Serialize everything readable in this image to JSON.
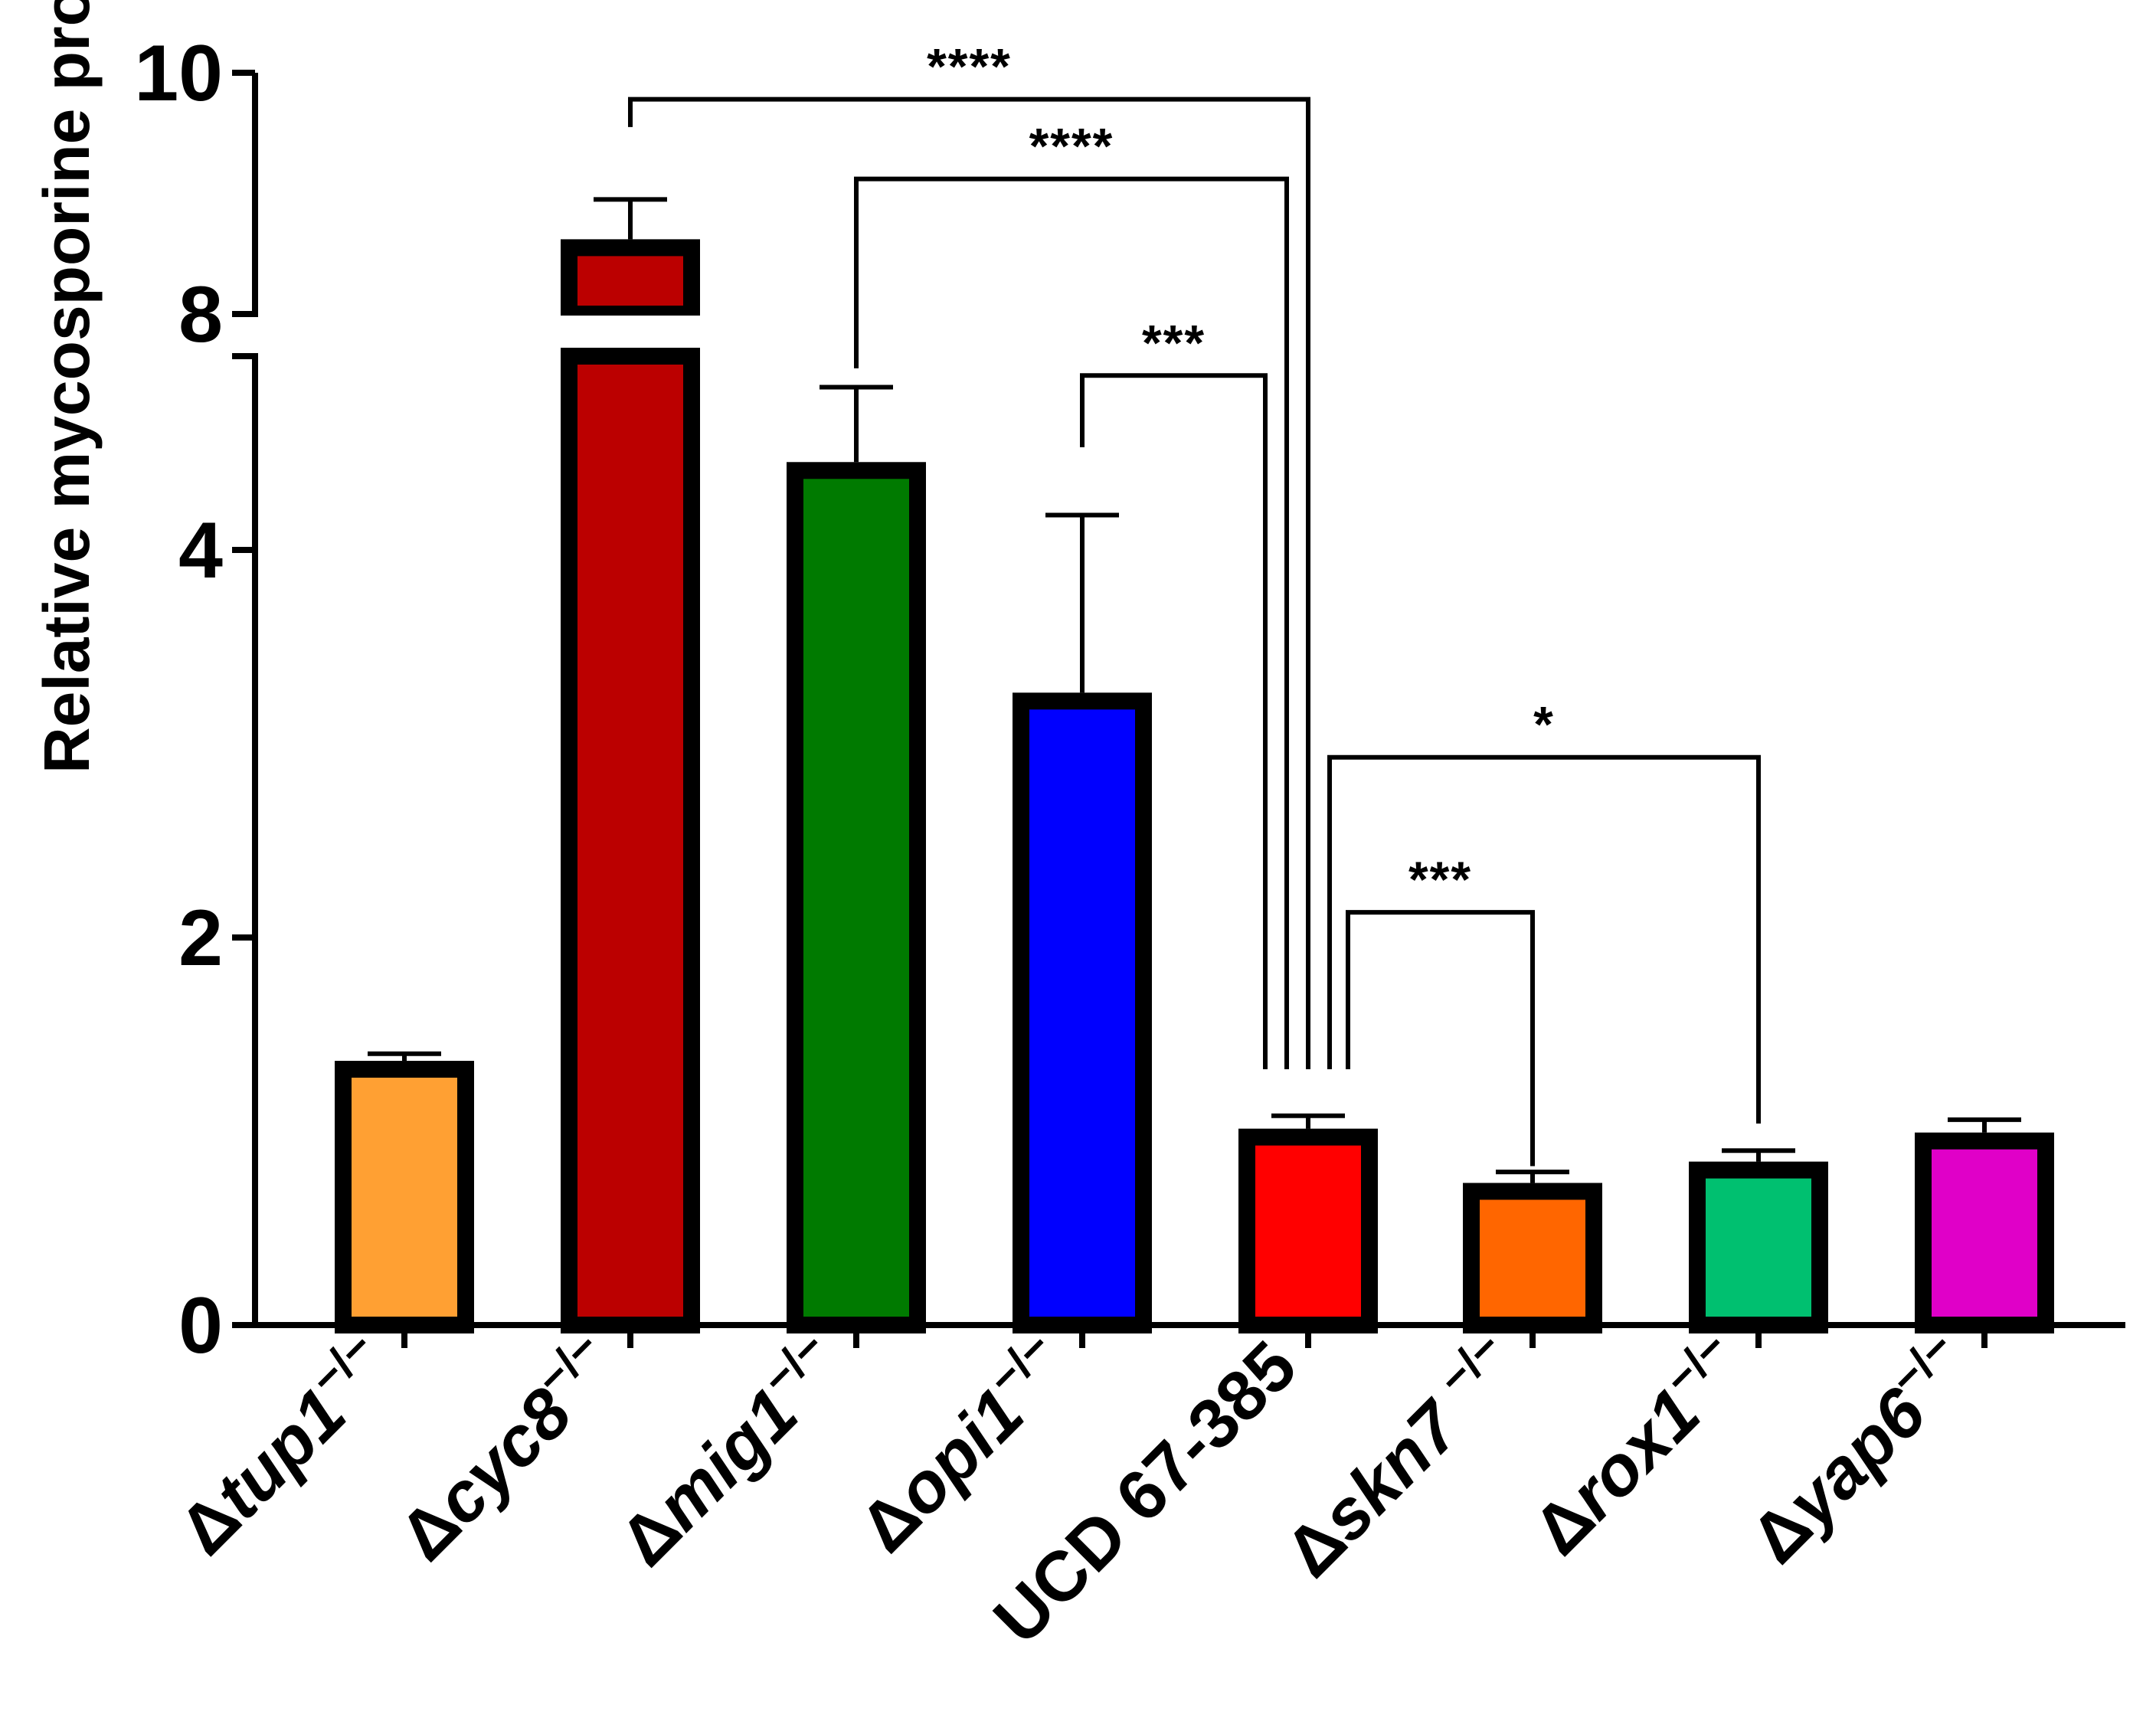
{
  "chart_data": {
    "type": "bar",
    "title": "",
    "xlabel": "",
    "ylabel": "Relative mycosporine production",
    "y_axis_break": {
      "from": 5.0,
      "to": 8.0
    },
    "ylim": [
      0,
      10
    ],
    "yticks": [
      "0",
      "2",
      "4",
      "8",
      "10"
    ],
    "categories": [
      {
        "prefix": "Δ",
        "gene": "tup1",
        "sup": "−/−"
      },
      {
        "prefix": "Δ",
        "gene": "cyc8",
        "sup": "−/−"
      },
      {
        "prefix": "Δ",
        "gene": "mig1",
        "sup": "−/−"
      },
      {
        "prefix": "Δ",
        "gene": "opi1",
        "sup": "−/−"
      },
      {
        "prefix": "",
        "gene": "UCD 67-385",
        "sup": ""
      },
      {
        "prefix": "Δ",
        "gene": "skn7 ",
        "sup": "−/−"
      },
      {
        "prefix": "Δ",
        "gene": "rox1",
        "sup": "−/−"
      },
      {
        "prefix": "Δ",
        "gene": "yap6",
        "sup": "−/−"
      }
    ],
    "values": [
      1.32,
      8.55,
      4.41,
      3.22,
      0.97,
      0.69,
      0.8,
      0.95
    ],
    "errors": [
      0.08,
      0.4,
      0.43,
      0.96,
      0.11,
      0.1,
      0.1,
      0.11
    ],
    "colors": [
      "#FFA033",
      "#BB0000",
      "#007A00",
      "#0000FF",
      "#FF0000",
      "#FF6600",
      "#00C070",
      "#E000C8"
    ],
    "significance": [
      {
        "from": 1,
        "to": 4,
        "label": "****",
        "level": 9.78,
        "drop_from": 9.55,
        "drop_to": 1.32
      },
      {
        "from": 2,
        "to": 4,
        "label": "****",
        "level": 9.12,
        "drop_from": 7.55,
        "drop_to": 1.32
      },
      {
        "from": 3,
        "to": 4,
        "label": "***",
        "level": 4.9,
        "drop_from": 4.53,
        "drop_to": 1.32
      },
      {
        "from": 4,
        "to": 6,
        "label": "*",
        "level": 2.93,
        "drop_from": 1.32,
        "drop_to": 1.04
      },
      {
        "from": 4,
        "to": 5,
        "label": "***",
        "level": 2.13,
        "drop_from": 1.32,
        "drop_to": 0.82
      }
    ]
  }
}
